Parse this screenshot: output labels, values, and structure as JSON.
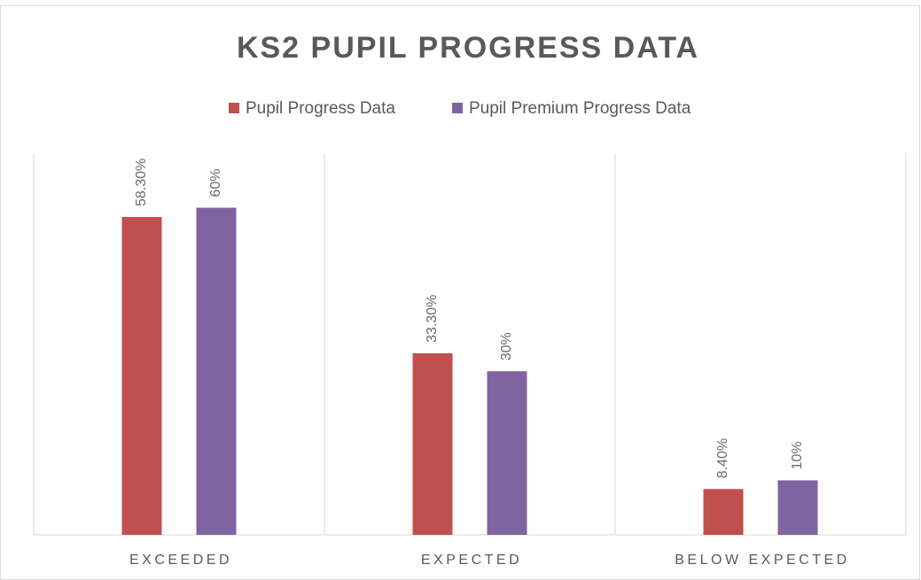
{
  "chart_data": {
    "type": "bar",
    "title": "KS2 PUPIL PROGRESS DATA",
    "categories": [
      "EXCEEDED",
      "EXPECTED",
      "BELOW EXPECTED"
    ],
    "series": [
      {
        "name": "Pupil Progress Data",
        "color": "#c0504d",
        "values": [
          58.3,
          33.3,
          8.4
        ],
        "value_labels": [
          "58.30%",
          "33.30%",
          "8.40%"
        ]
      },
      {
        "name": "Pupil Premium Progress Data",
        "color": "#8064a2",
        "values": [
          60,
          30,
          10
        ],
        "value_labels": [
          "60%",
          "30%",
          "10%"
        ]
      }
    ],
    "ylim": [
      0,
      70
    ],
    "legend": "top"
  }
}
